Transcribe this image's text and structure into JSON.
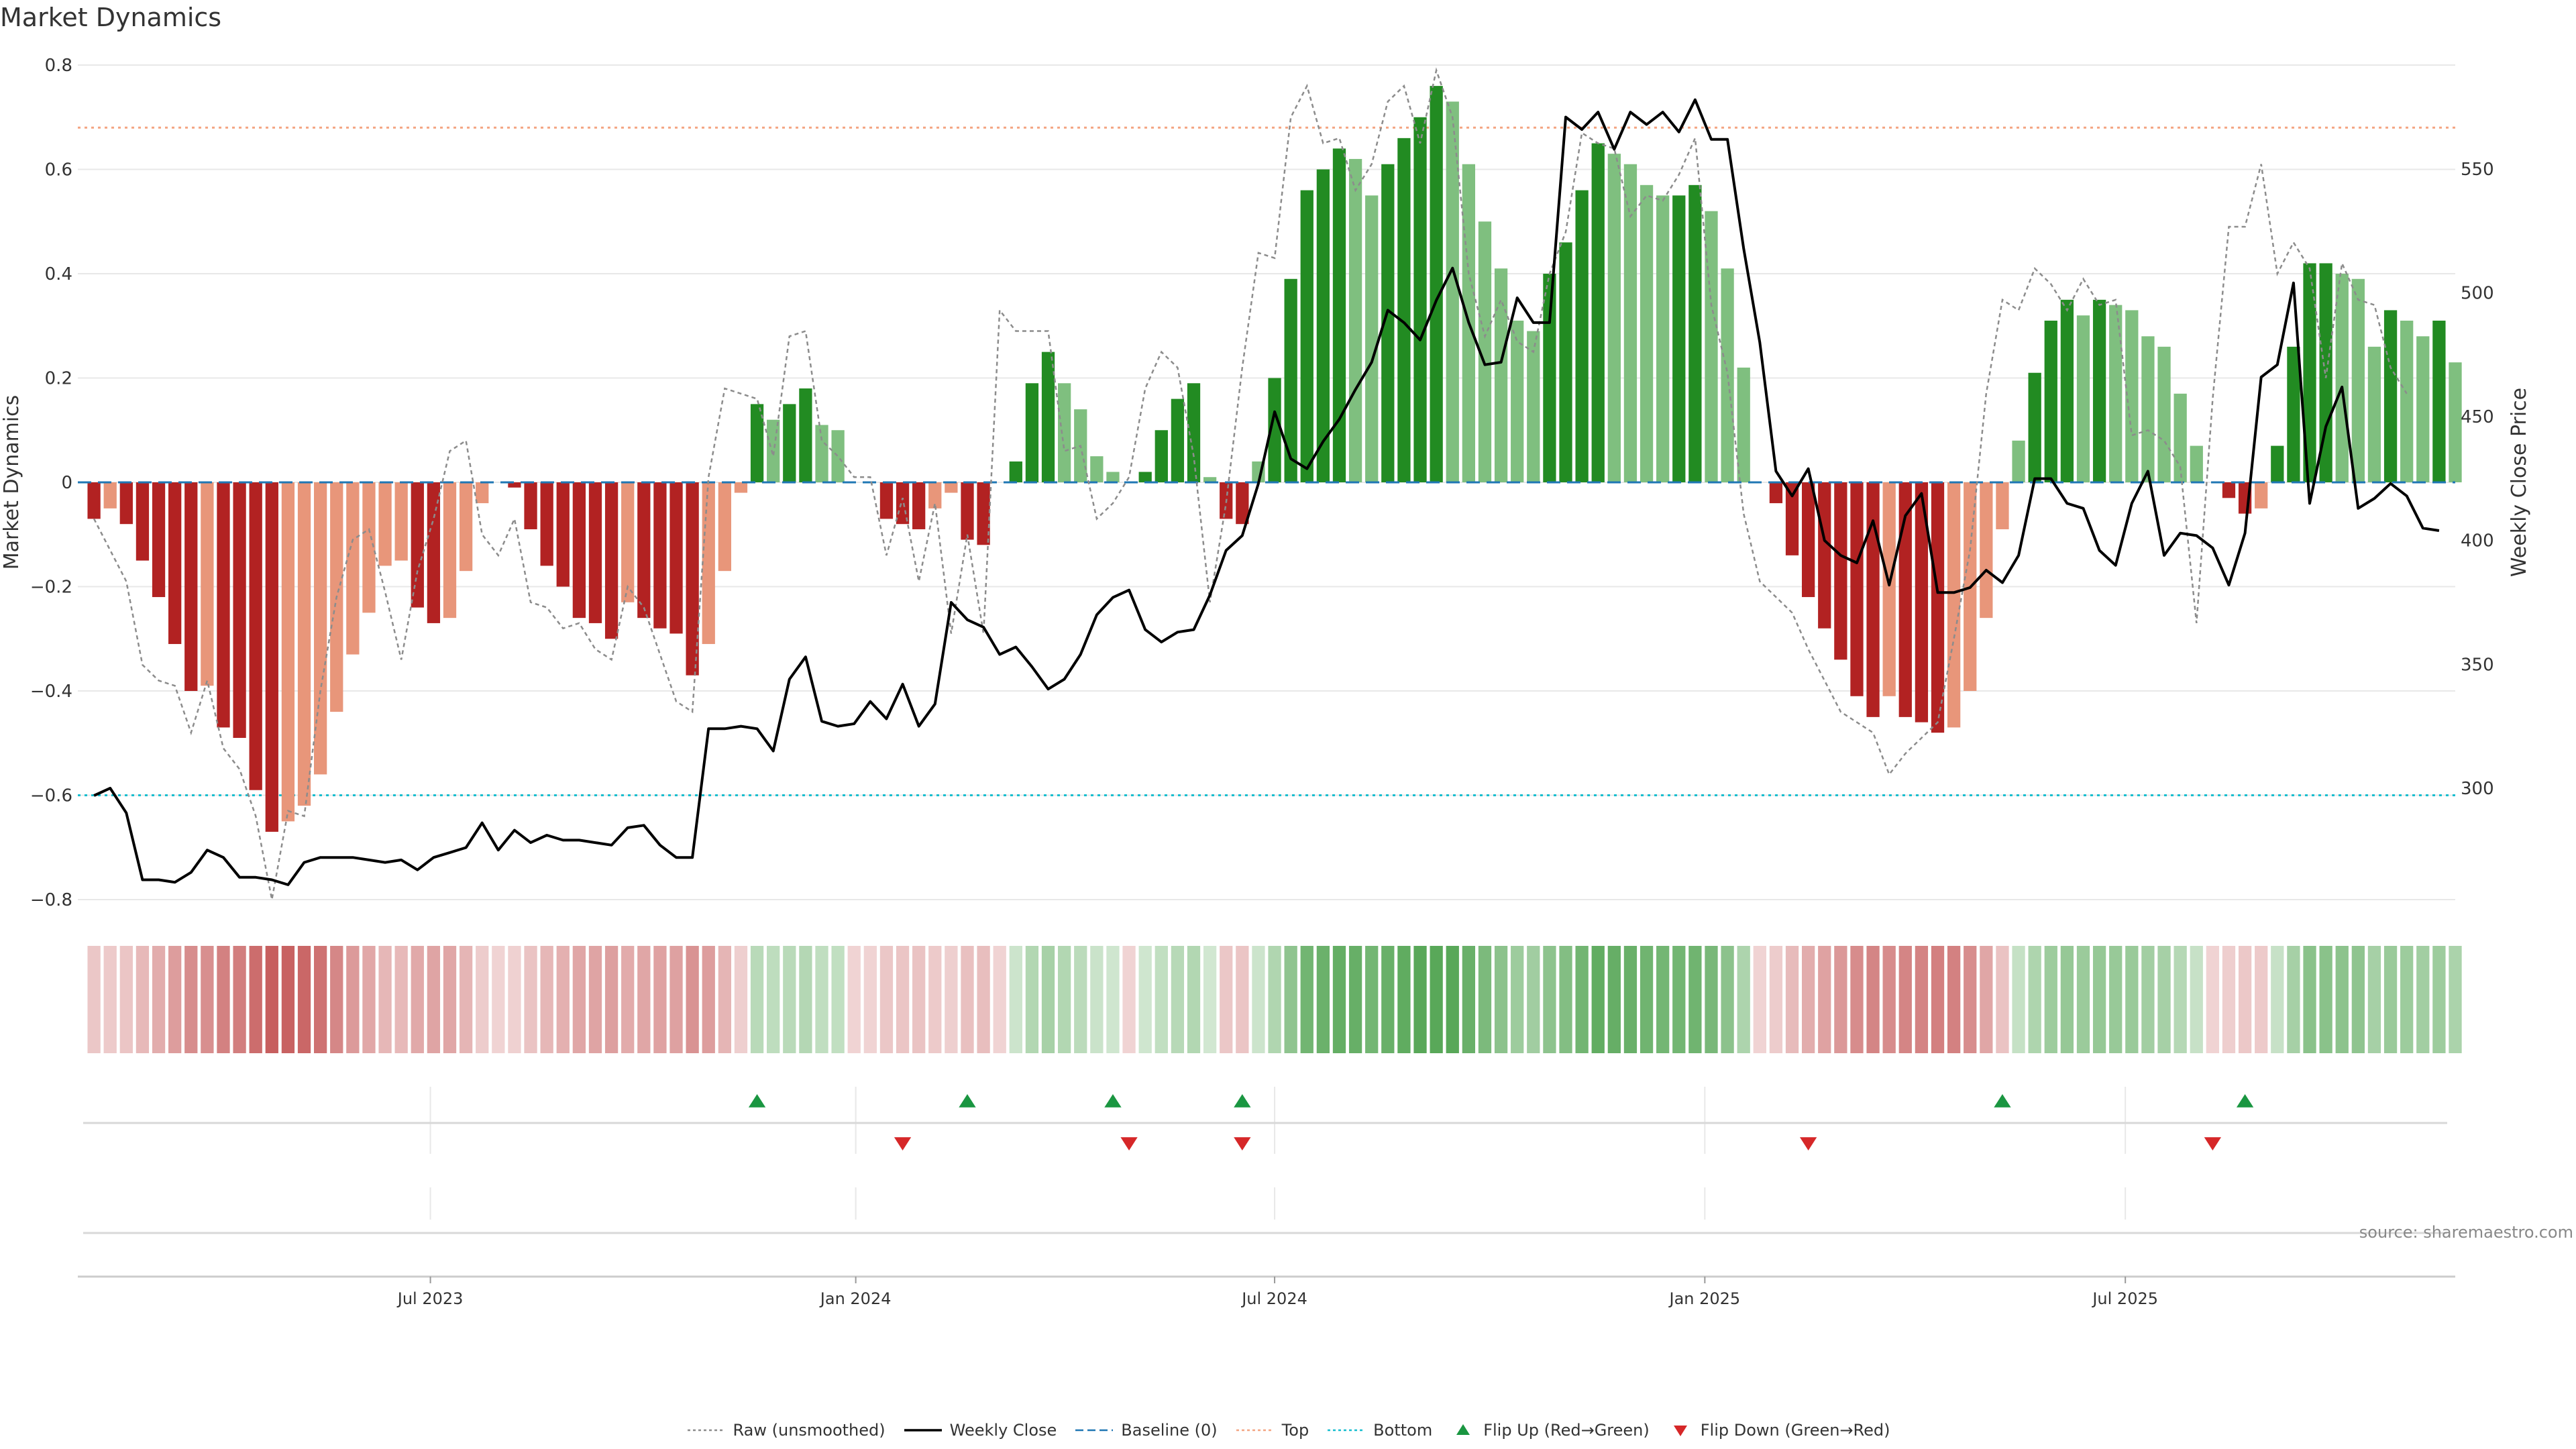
{
  "title": "Market Dynamics",
  "source": "source: sharemaestro.com",
  "colors": {
    "red_strong": "#b22222",
    "red_light": "#e8967a",
    "green_strong": "#228b22",
    "green_light": "#7fbf7f",
    "raw": "#8c8c8c",
    "close": "#000000",
    "baseline": "#1f77b4",
    "top": "#f4a582",
    "bottom": "#17becf",
    "flip_up": "#1a9641",
    "flip_down": "#d62728",
    "grid": "#e8e8e8"
  },
  "legend": [
    {
      "key": "raw",
      "label": "Raw (unsmoothed)",
      "style": "dotted-line",
      "icon": "raw-line-icon"
    },
    {
      "key": "close",
      "label": "Weekly Close",
      "style": "solid-line",
      "icon": "close-line-icon"
    },
    {
      "key": "baseline",
      "label": "Baseline (0)",
      "style": "dashed-line",
      "icon": "baseline-line-icon"
    },
    {
      "key": "top",
      "label": "Top",
      "style": "dotted-line",
      "icon": "top-line-icon"
    },
    {
      "key": "bottom",
      "label": "Bottom",
      "style": "dotted-line",
      "icon": "bottom-line-icon"
    },
    {
      "key": "flip_up",
      "label": "Flip Up (Red→Green)",
      "style": "triangle-up",
      "icon": "triangle-up-icon"
    },
    {
      "key": "flip_down",
      "label": "Flip Down (Green→Red)",
      "style": "triangle-down",
      "icon": "triangle-down-icon"
    }
  ],
  "chart_data": {
    "type": "bar",
    "title": "Market Dynamics",
    "ylabel": "Market Dynamics",
    "y2label": "Weekly Close Price",
    "ylim": [
      -0.8,
      0.8
    ],
    "y2lim": [
      255,
      592
    ],
    "yticks": [
      "0.8",
      "0.6",
      "0.4",
      "0.2",
      "0",
      "−0.2",
      "−0.4",
      "−0.6",
      "−0.8"
    ],
    "y2ticks": [
      "300",
      "350",
      "400",
      "450",
      "500",
      "550"
    ],
    "x_range_weeks": [
      -1,
      146
    ],
    "xticks": [
      {
        "label": "Jul 2023",
        "week": 20.8
      },
      {
        "label": "Jan 2024",
        "week": 47.1
      },
      {
        "label": "Jul 2024",
        "week": 73
      },
      {
        "label": "Jan 2025",
        "week": 99.6
      },
      {
        "label": "Jul 2025",
        "week": 125.6
      }
    ],
    "top_level": 0.68,
    "bottom_level": -0.6,
    "baseline": 0,
    "series": [
      {
        "name": "Market Dynamics",
        "values": [
          -0.07,
          -0.05,
          -0.08,
          -0.15,
          -0.22,
          -0.31,
          -0.4,
          -0.39,
          -0.47,
          -0.49,
          -0.59,
          -0.67,
          -0.65,
          -0.62,
          -0.56,
          -0.44,
          -0.33,
          -0.25,
          -0.16,
          -0.15,
          -0.24,
          -0.27,
          -0.26,
          -0.17,
          -0.04,
          0,
          -0.01,
          -0.09,
          -0.16,
          -0.2,
          -0.26,
          -0.27,
          -0.3,
          -0.23,
          -0.26,
          -0.28,
          -0.29,
          -0.37,
          -0.31,
          -0.17,
          -0.02,
          0.15,
          0.12,
          0.15,
          0.18,
          0.11,
          0.1,
          0,
          0,
          -0.07,
          -0.08,
          -0.09,
          -0.05,
          -0.02,
          -0.11,
          -0.12,
          0,
          0.04,
          0.19,
          0.25,
          0.19,
          0.14,
          0.05,
          0.02,
          0,
          0.02,
          0.1,
          0.16,
          0.19,
          0.01,
          -0.07,
          -0.08,
          0.04,
          0.2,
          0.39,
          0.56,
          0.6,
          0.64,
          0.62,
          0.55,
          0.61,
          0.66,
          0.7,
          0.76,
          0.73,
          0.61,
          0.5,
          0.41,
          0.31,
          0.29,
          0.4,
          0.46,
          0.56,
          0.65,
          0.63,
          0.61,
          0.57,
          0.55,
          0.55,
          0.57,
          0.52,
          0.41,
          0.22,
          0,
          -0.04,
          -0.14,
          -0.22,
          -0.28,
          -0.34,
          -0.41,
          -0.45,
          -0.41,
          -0.45,
          -0.46,
          -0.48,
          -0.47,
          -0.4,
          -0.26,
          -0.09,
          0.08,
          0.21,
          0.31,
          0.35,
          0.32,
          0.35,
          0.34,
          0.33,
          0.28,
          0.26,
          0.17,
          0.07,
          0,
          -0.03,
          -0.06,
          -0.05,
          0.07,
          0.26,
          0.42,
          0.42,
          0.4,
          0.39,
          0.26,
          0.33,
          0.31,
          0.28,
          0.31,
          0.23
        ]
      },
      {
        "name": "Raw (unsmoothed)",
        "values": [
          -0.07,
          -0.13,
          -0.19,
          -0.35,
          -0.38,
          -0.39,
          -0.48,
          -0.38,
          -0.51,
          -0.55,
          -0.64,
          -0.8,
          -0.63,
          -0.64,
          -0.4,
          -0.22,
          -0.11,
          -0.09,
          -0.21,
          -0.34,
          -0.17,
          -0.07,
          0.06,
          0.08,
          -0.1,
          -0.14,
          -0.07,
          -0.23,
          -0.24,
          -0.28,
          -0.27,
          -0.32,
          -0.34,
          -0.2,
          -0.24,
          -0.33,
          -0.42,
          -0.44,
          0.01,
          0.18,
          0.17,
          0.16,
          0.05,
          0.28,
          0.29,
          0.08,
          0.05,
          0.01,
          0.01,
          -0.14,
          -0.03,
          -0.19,
          -0.04,
          -0.29,
          -0.1,
          -0.29,
          0.33,
          0.29,
          0.29,
          0.29,
          0.06,
          0.07,
          -0.07,
          -0.04,
          0.01,
          0.18,
          0.25,
          0.22,
          0.05,
          -0.23,
          -0.04,
          0.22,
          0.44,
          0.43,
          0.7,
          0.76,
          0.65,
          0.66,
          0.56,
          0.61,
          0.73,
          0.76,
          0.65,
          0.79,
          0.7,
          0.4,
          0.28,
          0.35,
          0.27,
          0.25,
          0.4,
          0.48,
          0.67,
          0.65,
          0.64,
          0.51,
          0.55,
          0.54,
          0.59,
          0.66,
          0.34,
          0.21,
          -0.06,
          -0.19,
          -0.22,
          -0.25,
          -0.32,
          -0.38,
          -0.44,
          -0.46,
          -0.48,
          -0.56,
          -0.52,
          -0.49,
          -0.46,
          -0.3,
          -0.13,
          0.17,
          0.35,
          0.33,
          0.41,
          0.38,
          0.33,
          0.39,
          0.34,
          0.35,
          0.09,
          0.1,
          0.08,
          0.03,
          -0.27,
          0.16,
          0.49,
          0.49,
          0.61,
          0.4,
          0.46,
          0.41,
          0.2,
          0.42,
          0.35,
          0.34,
          0.22,
          0.17
        ]
      },
      {
        "name": "Weekly Close",
        "values": [
          297,
          300,
          290,
          263,
          263,
          262,
          266,
          275,
          272,
          264,
          264,
          263,
          261,
          270,
          272,
          272,
          272,
          271,
          270,
          271,
          267,
          272,
          274,
          276,
          286,
          275,
          283,
          278,
          281,
          279,
          279,
          278,
          277,
          284,
          285,
          277,
          272,
          272,
          324,
          324,
          325,
          324,
          315,
          344,
          353,
          327,
          325,
          326,
          335,
          328,
          342,
          325,
          334,
          375,
          368,
          365,
          354,
          357,
          349,
          340,
          344,
          354,
          370,
          377,
          380,
          364,
          359,
          363,
          364,
          378,
          396,
          402,
          423,
          452,
          433,
          429,
          440,
          449,
          461,
          472,
          493,
          488,
          481,
          497,
          510,
          488,
          471,
          472,
          498,
          488,
          488,
          571,
          566,
          573,
          558,
          573,
          568,
          573,
          565,
          578,
          562,
          562,
          518,
          480,
          428,
          418,
          429,
          400,
          394,
          391,
          408,
          382,
          410,
          419,
          379,
          379,
          381,
          388,
          383,
          394,
          425,
          425,
          415,
          413,
          396,
          390,
          415,
          428,
          394,
          403,
          402,
          397,
          382,
          403,
          466,
          471,
          504,
          415,
          446,
          462,
          413,
          417,
          423,
          418,
          405,
          404
        ]
      }
    ],
    "flip_up_weeks": [
      41,
      54,
      63,
      71,
      118,
      133
    ],
    "flip_down_weeks": [
      50,
      64,
      71,
      106,
      131
    ],
    "heat_strip": "one cell per week, hue follows bar sign, opacity follows magnitude"
  }
}
